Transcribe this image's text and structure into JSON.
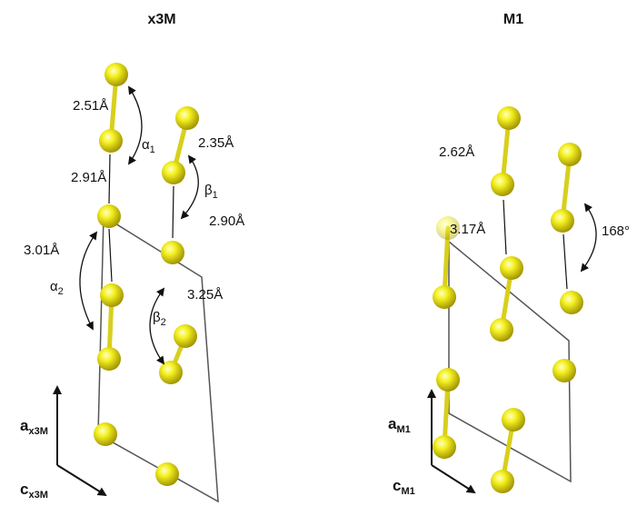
{
  "panels": [
    {
      "title": "x3M",
      "distances": [
        "2.51Å",
        "2.35Å",
        "2.91Å",
        "2.90Å",
        "3.01Å",
        "3.25Å"
      ],
      "angles": [
        {
          "symbol": "α",
          "sub": "1"
        },
        {
          "symbol": "β",
          "sub": "1"
        },
        {
          "symbol": "α",
          "sub": "2"
        },
        {
          "symbol": "β",
          "sub": "2"
        }
      ],
      "axes": [
        {
          "symbol": "a",
          "sub": "x3M"
        },
        {
          "symbol": "c",
          "sub": "x3M"
        }
      ]
    },
    {
      "title": "M1",
      "distances": [
        "2.62Å",
        "3.17Å"
      ],
      "angles": [
        {
          "symbol": "168°"
        }
      ],
      "axes": [
        {
          "symbol": "a",
          "sub": "M1"
        },
        {
          "symbol": "c",
          "sub": "M1"
        }
      ]
    }
  ]
}
